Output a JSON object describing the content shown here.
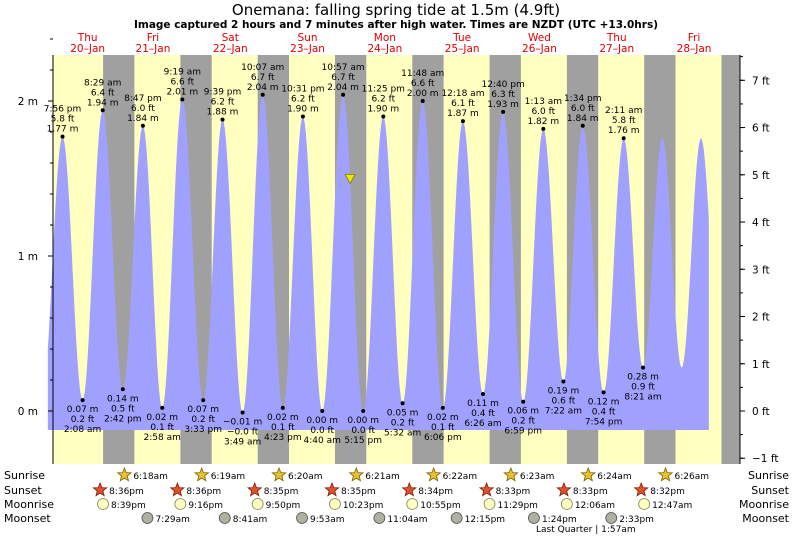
{
  "chart_data": {
    "type": "area",
    "title": "Onemana: falling  spring tide at 1.5m (4.9ft)",
    "subtitle": "Image captured 2 hours and 7 minutes after high water. Times are NZDT (UTC +13.0hrs)",
    "days": [
      {
        "dow": "Thu",
        "date": "20–Jan"
      },
      {
        "dow": "Fri",
        "date": "21–Jan"
      },
      {
        "dow": "Sat",
        "date": "22–Jan"
      },
      {
        "dow": "Sun",
        "date": "23–Jan"
      },
      {
        "dow": "Mon",
        "date": "24–Jan"
      },
      {
        "dow": "Tue",
        "date": "25–Jan"
      },
      {
        "dow": "Wed",
        "date": "26–Jan"
      },
      {
        "dow": "Thu",
        "date": "27–Jan"
      },
      {
        "dow": "Fri",
        "date": "28–Jan"
      }
    ],
    "y_left_ticks": [
      "0 m",
      "1 m",
      "2 m"
    ],
    "y_right_ticks": [
      "−1 ft",
      "0 ft",
      "1 ft",
      "2 ft",
      "3 ft",
      "4 ft",
      "5 ft",
      "6 ft",
      "7 ft"
    ],
    "ylim_m": [
      -0.3,
      2.45
    ],
    "tides": [
      {
        "type": "high",
        "day": 0.33,
        "time": "7:56 pm",
        "m": "1.77 m",
        "ft": "5.8 ft",
        "v": 1.77
      },
      {
        "type": "low",
        "day": 0.59,
        "time": "2:08 am",
        "m": "0.07 m",
        "ft": "0.2 ft",
        "v": 0.07
      },
      {
        "type": "high",
        "day": 0.85,
        "time": "8:29 am",
        "m": "1.94 m",
        "ft": "6.4 ft",
        "v": 1.94
      },
      {
        "type": "low",
        "day": 1.11,
        "time": "2:42 pm",
        "m": "0.14 m",
        "ft": "0.5 ft",
        "v": 0.14
      },
      {
        "type": "high",
        "day": 1.37,
        "time": "8:47 pm",
        "m": "1.84 m",
        "ft": "6.0 ft",
        "v": 1.84
      },
      {
        "type": "low",
        "day": 1.62,
        "time": "2:58 am",
        "m": "0.02 m",
        "ft": "0.1 ft",
        "v": 0.02
      },
      {
        "type": "high",
        "day": 1.88,
        "time": "9:19 am",
        "m": "2.01 m",
        "ft": "6.6 ft",
        "v": 2.01
      },
      {
        "type": "low",
        "day": 2.15,
        "time": "3:33 pm",
        "m": "0.07 m",
        "ft": "0.2 ft",
        "v": 0.07
      },
      {
        "type": "high",
        "day": 2.4,
        "time": "9:39 pm",
        "m": "1.88 m",
        "ft": "6.2 ft",
        "v": 1.88
      },
      {
        "type": "low",
        "day": 2.66,
        "time": "3:49 am",
        "m": "−0.01 m",
        "ft": "−0.0 ft",
        "v": -0.01
      },
      {
        "type": "high",
        "day": 2.92,
        "time": "10:07 am",
        "m": "2.04 m",
        "ft": "6.7 ft",
        "v": 2.04
      },
      {
        "type": "low",
        "day": 3.18,
        "time": "4:23 pm",
        "m": "0.02 m",
        "ft": "0.1 ft",
        "v": 0.02
      },
      {
        "type": "high",
        "day": 3.44,
        "time": "10:31 pm",
        "m": "1.90 m",
        "ft": "6.2 ft",
        "v": 1.9
      },
      {
        "type": "low",
        "day": 3.69,
        "time": "4:40 am",
        "m": "0.00 m",
        "ft": "0.0 ft",
        "v": 0.0
      },
      {
        "type": "high",
        "day": 3.96,
        "time": "10:57 am",
        "m": "2.04 m",
        "ft": "6.7 ft",
        "v": 2.04
      },
      {
        "type": "low",
        "day": 4.22,
        "time": "5:15 pm",
        "m": "0.00 m",
        "ft": "0.0 ft",
        "v": 0.0
      },
      {
        "type": "high",
        "day": 4.48,
        "time": "11:25 pm",
        "m": "1.90 m",
        "ft": "6.2 ft",
        "v": 1.9
      },
      {
        "type": "low",
        "day": 4.73,
        "time": "5:32 am",
        "m": "0.05 m",
        "ft": "0.2 ft",
        "v": 0.05
      },
      {
        "type": "high",
        "day": 4.99,
        "time": "11:48 am",
        "m": "2.00 m",
        "ft": "6.6 ft",
        "v": 2.0
      },
      {
        "type": "low",
        "day": 5.25,
        "time": "6:06 pm",
        "m": "0.02 m",
        "ft": "0.1 ft",
        "v": 0.02
      },
      {
        "type": "high",
        "day": 5.51,
        "time": "12:18 am",
        "m": "1.87 m",
        "ft": "6.1 ft",
        "v": 1.87
      },
      {
        "type": "low",
        "day": 5.77,
        "time": "6:26 am",
        "m": "0.11 m",
        "ft": "0.4 ft",
        "v": 0.11
      },
      {
        "type": "high",
        "day": 6.03,
        "time": "12:40 pm",
        "m": "1.93 m",
        "ft": "6.3 ft",
        "v": 1.93
      },
      {
        "type": "low",
        "day": 6.29,
        "time": "6:59 pm",
        "m": "0.06 m",
        "ft": "0.2 ft",
        "v": 0.06
      },
      {
        "type": "high",
        "day": 6.55,
        "time": "1:13 am",
        "m": "1.82 m",
        "ft": "6.0 ft",
        "v": 1.82
      },
      {
        "type": "low",
        "day": 6.81,
        "time": "7:22 am",
        "m": "0.19 m",
        "ft": "0.6 ft",
        "v": 0.19
      },
      {
        "type": "high",
        "day": 7.06,
        "time": "1:34 pm",
        "m": "1.84 m",
        "ft": "6.0 ft",
        "v": 1.84
      },
      {
        "type": "low",
        "day": 7.33,
        "time": "7:54 pm",
        "m": "0.12 m",
        "ft": "0.4 ft",
        "v": 0.12
      },
      {
        "type": "high",
        "day": 7.59,
        "time": "2:11 am",
        "m": "1.76 m",
        "ft": "5.8 ft",
        "v": 1.76
      },
      {
        "type": "low",
        "day": 7.84,
        "time": "8:21 am",
        "m": "0.28 m",
        "ft": "0.9 ft",
        "v": 0.28
      }
    ],
    "current": {
      "day": 4.05,
      "v": 1.5
    },
    "rows": {
      "labels": [
        "Sunrise",
        "Sunset",
        "Moonrise",
        "Moonset"
      ],
      "sunrise": [
        "6:18am",
        "6:19am",
        "6:20am",
        "6:21am",
        "6:22am",
        "6:23am",
        "6:24am",
        "6:26am"
      ],
      "sunset": [
        "8:36pm",
        "8:36pm",
        "8:35pm",
        "8:35pm",
        "8:34pm",
        "8:33pm",
        "8:33pm",
        "8:32pm"
      ],
      "moonrise": [
        "8:39pm",
        "9:16pm",
        "9:50pm",
        "10:23pm",
        "10:55pm",
        "11:29pm",
        "12:06am",
        "12:47am"
      ],
      "moonset": [
        "7:29am",
        "8:41am",
        "9:53am",
        "11:04am",
        "12:15pm",
        "1:24pm",
        "2:33pm"
      ],
      "phase_note": "Last Quarter | 1:57am"
    },
    "colors": {
      "day_bg": "#ffffc0",
      "night_bg": "#a0a0a0",
      "tide": "#a0a0ff",
      "day_text": "#e00000",
      "marker": "#e8e800"
    }
  }
}
